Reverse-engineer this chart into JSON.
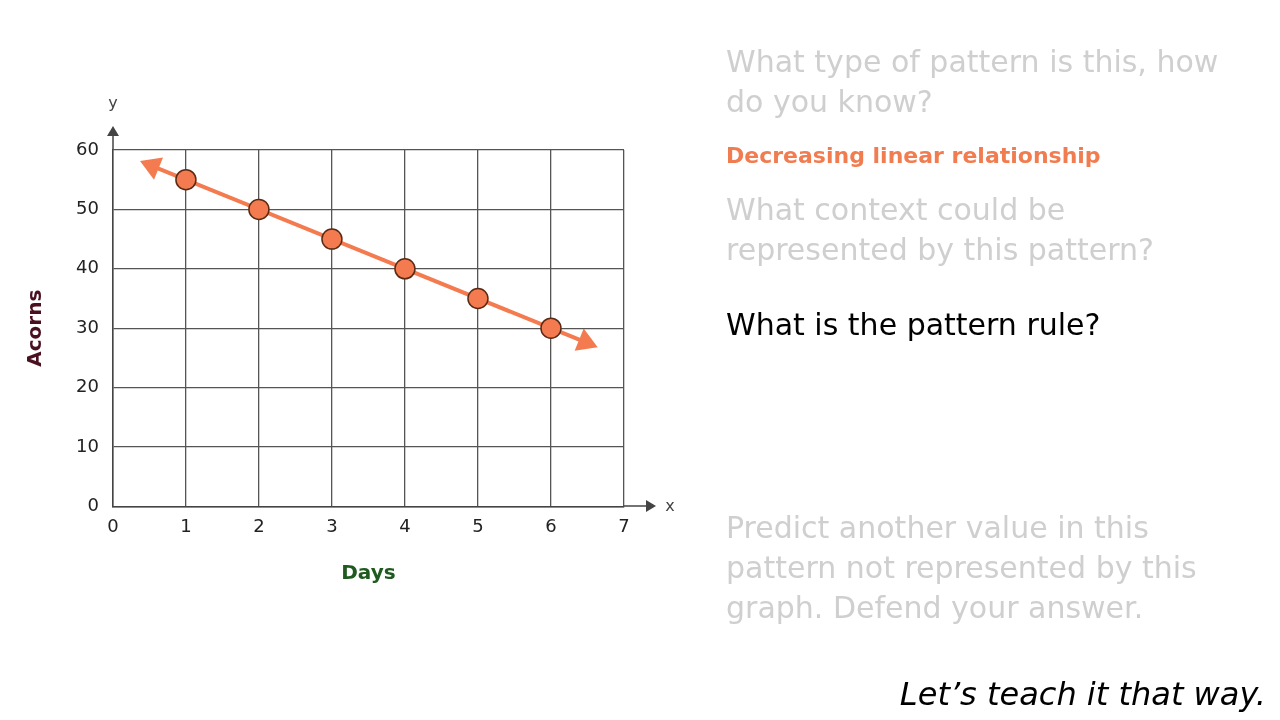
{
  "chart_data": [
    {
      "type": "scatter",
      "xlabel": "Days",
      "ylabel": "Acorns",
      "x": [
        1,
        2,
        3,
        4,
        5,
        6
      ],
      "series": [
        {
          "type": "scatter",
          "color": "#f47b50",
          "values": [
            55,
            50,
            45,
            40,
            35,
            30
          ]
        }
      ],
      "xlim": [
        0,
        7
      ],
      "ylim": [
        0,
        60
      ],
      "xticks": [
        0,
        1,
        2,
        3,
        4,
        5,
        6,
        7
      ],
      "yticks": [
        0,
        10,
        20,
        30,
        40,
        50,
        60
      ],
      "grid": true,
      "marker": "circle",
      "annotations": [
        "y",
        "x"
      ]
    },
    {
      "type": "other",
      "annotations": [
        "What type of pattern is this, how do you know?",
        "Decreasing linear relationship",
        "What context could be represented by this pattern?",
        "What is the pattern rule?",
        "Predict another value in this pattern not represented by this graph. Defend your answer.",
        "Let’s teach it that way."
      ]
    }
  ]
}
